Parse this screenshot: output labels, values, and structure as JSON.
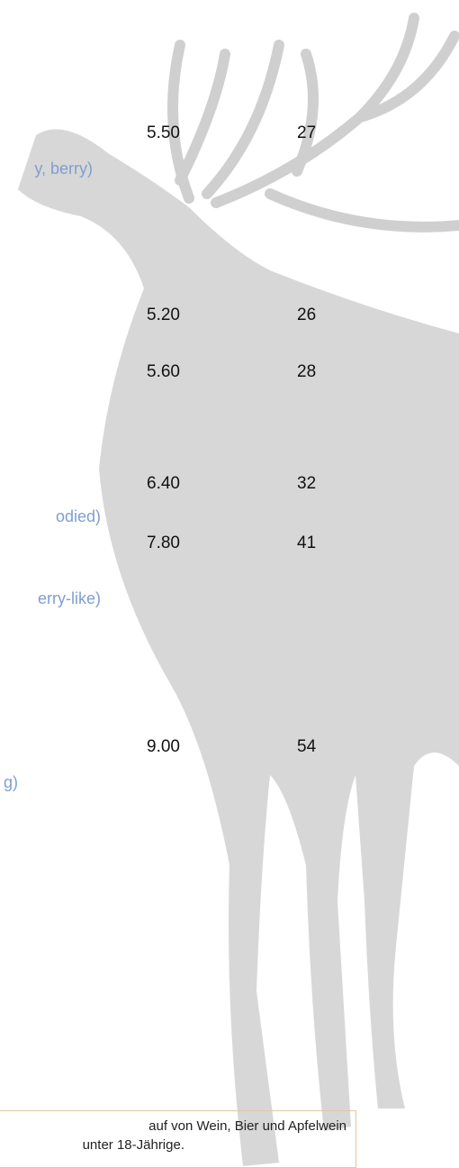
{
  "menu": {
    "items": [
      {
        "price_small": "5.50",
        "price_bottle": "27",
        "note": "y, berry)"
      },
      {
        "price_small": "5.20",
        "price_bottle": "26"
      },
      {
        "price_small": "5.60",
        "price_bottle": "28"
      },
      {
        "price_small": "6.40",
        "price_bottle": "32",
        "note": "odied)"
      },
      {
        "price_small": "7.80",
        "price_bottle": "41",
        "note": "erry-like)"
      },
      {
        "price_small": "9.00",
        "price_bottle": "54",
        "note": "g)"
      }
    ]
  },
  "notice": {
    "lines": [
      "auf von Wein, Bier und Apfelwein",
      "unter 18-Jährige."
    ]
  }
}
